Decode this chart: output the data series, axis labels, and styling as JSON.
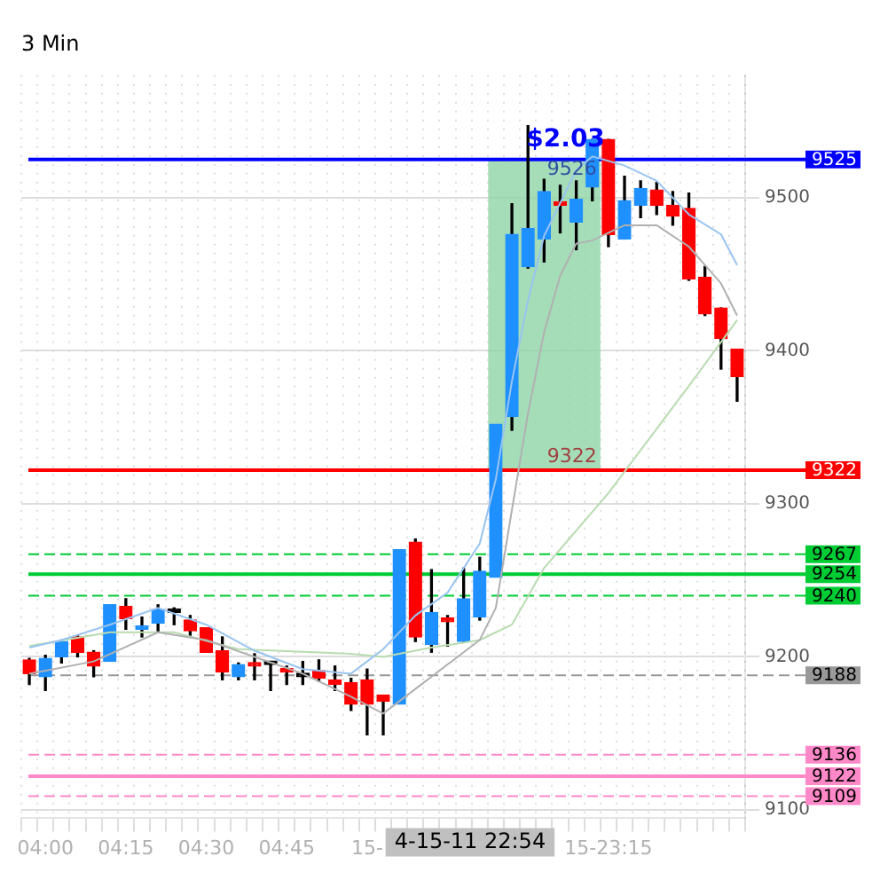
{
  "chart_data": {
    "type": "candlestick",
    "title": "3 Min",
    "categories": [
      null,
      "04:00",
      null,
      null,
      null,
      null,
      "04:15",
      null,
      null,
      null,
      null,
      "04:30",
      null,
      null,
      null,
      null,
      "04:45",
      null,
      null,
      null,
      null,
      "15-",
      null,
      null,
      null,
      null,
      null,
      null,
      null,
      null,
      null,
      null,
      null,
      null,
      null,
      null,
      "15-23:15",
      null,
      null,
      null,
      null,
      null,
      null,
      null,
      null
    ],
    "ohlc": [
      [
        9198,
        9199,
        9182,
        9189
      ],
      [
        9187,
        9201,
        9178,
        9199
      ],
      [
        9200,
        9211,
        9196,
        9210
      ],
      [
        9213,
        9214,
        9200,
        9203
      ],
      [
        9203,
        9204,
        9187,
        9194
      ],
      [
        9197,
        9234,
        9197,
        9234
      ],
      [
        9233,
        9238,
        9218,
        9225
      ],
      [
        9218,
        9226,
        9213,
        9220
      ],
      [
        9222,
        9234,
        9216,
        9231
      ],
      [
        9229,
        9232,
        9221,
        9229
      ],
      [
        9224,
        9227,
        9214,
        9217
      ],
      [
        9219,
        9219,
        9203,
        9203
      ],
      [
        9204,
        9213,
        9185,
        9190
      ],
      [
        9187,
        9196,
        9185,
        9195
      ],
      [
        9196,
        9202,
        9185,
        9194
      ],
      [
        9195,
        9195,
        9178,
        9195
      ],
      [
        9192,
        9194,
        9182,
        9190
      ],
      [
        9187,
        9197,
        9182,
        9187
      ],
      [
        9191,
        9198,
        9184,
        9186
      ],
      [
        9185,
        9194,
        9178,
        9182
      ],
      [
        9183,
        9186,
        9165,
        9169
      ],
      [
        9185,
        9192,
        9149,
        9169
      ],
      [
        9175,
        9175,
        9149,
        9171
      ],
      [
        9169,
        9270,
        9169,
        9270
      ],
      [
        9275,
        9277,
        9210,
        9213
      ],
      [
        9208,
        9257,
        9203,
        9229
      ],
      [
        9225,
        9227,
        9207,
        9223
      ],
      [
        9210,
        9258,
        9210,
        9238
      ],
      [
        9226,
        9265,
        9224,
        9256
      ],
      [
        9252,
        9352,
        9252,
        9352
      ],
      [
        9357,
        9496,
        9348,
        9476
      ],
      [
        9455,
        9547,
        9454,
        9480
      ],
      [
        9473,
        9512,
        9458,
        9504
      ],
      [
        9497,
        9508,
        9477,
        9495
      ],
      [
        9484,
        9511,
        9466,
        9499
      ],
      [
        9507,
        9538,
        9498,
        9538
      ],
      [
        9538,
        9538,
        9468,
        9476
      ],
      [
        9473,
        9514,
        9473,
        9498
      ],
      [
        9495,
        9511,
        9487,
        9506
      ],
      [
        9505,
        9510,
        9489,
        9495
      ],
      [
        9495,
        9504,
        9482,
        9488
      ],
      [
        9493,
        9503,
        9446,
        9447
      ],
      [
        9448,
        9455,
        9423,
        9424
      ],
      [
        9428,
        9428,
        9388,
        9408
      ],
      [
        9401,
        9401,
        9367,
        9383
      ]
    ],
    "colors": [
      "#ff0000",
      "#1e90ff",
      "#1e90ff",
      "#ff0000",
      "#ff0000",
      "#1e90ff",
      "#ff0000",
      "#1e90ff",
      "#1e90ff",
      "#000000",
      "#ff0000",
      "#ff0000",
      "#ff0000",
      "#1e90ff",
      "#ff0000",
      "#000000",
      "#ff0000",
      "#000000",
      "#ff0000",
      "#ff0000",
      "#ff0000",
      "#ff0000",
      "#ff0000",
      "#1e90ff",
      "#ff0000",
      "#1e90ff",
      "#ff0000",
      "#1e90ff",
      "#1e90ff",
      "#1e90ff",
      "#1e90ff",
      "#1e90ff",
      "#1e90ff",
      "#ff0000",
      "#1e90ff",
      "#1e90ff",
      "#ff0000",
      "#1e90ff",
      "#1e90ff",
      "#ff0000",
      "#ff0000",
      "#ff0000",
      "#ff0000",
      "#ff0000",
      "#ff0000"
    ],
    "series": [
      {
        "type": "line",
        "color": "#99c4f0",
        "values": [
          9206,
          null,
          9211,
          null,
          null,
          9221,
          null,
          null,
          9232,
          null,
          null,
          9221,
          null,
          null,
          9204,
          null,
          null,
          9192,
          null,
          null,
          9189,
          null,
          9205,
          null,
          9227,
          null,
          9242,
          null,
          9274,
          9316,
          9380,
          9433,
          9475,
          null,
          9518,
          9527,
          null,
          9521,
          null,
          9511,
          null,
          9489,
          null,
          9476,
          9456
        ]
      },
      {
        "type": "line",
        "color": "#b0b0b0",
        "values": [
          9189,
          null,
          null,
          null,
          9197,
          null,
          null,
          null,
          9216,
          null,
          null,
          9211,
          null,
          null,
          9200,
          null,
          null,
          9189,
          null,
          null,
          9174,
          null,
          9163,
          null,
          9179,
          null,
          9195,
          null,
          9211,
          9232,
          9296,
          9359,
          9412,
          9449,
          9470,
          9472,
          null,
          9482,
          null,
          9482,
          null,
          9468,
          null,
          9444,
          9423
        ]
      },
      {
        "type": "line",
        "color": "#b8dcb0",
        "values": [
          9207,
          null,
          null,
          null,
          null,
          9216,
          null,
          null,
          null,
          9216,
          null,
          null,
          null,
          9205,
          null,
          null,
          null,
          null,
          null,
          null,
          9202,
          null,
          9200,
          null,
          null,
          9206,
          null,
          null,
          9211,
          null,
          9221,
          null,
          9258,
          null,
          null,
          null,
          9307,
          null,
          null,
          null,
          null,
          9377,
          null,
          null,
          9420
        ]
      }
    ],
    "ylim": [
      9095,
      9580
    ],
    "yticks": [
      9100,
      9200,
      9300,
      9400,
      9500
    ],
    "grid": true,
    "legend": false,
    "marker": "none",
    "ref_lines": [
      {
        "axis": "y",
        "value": 9525,
        "label": "9525",
        "color": "#0000ff",
        "line_style": "solid"
      },
      {
        "axis": "y",
        "value": 9322,
        "label": "9322",
        "color": "#ff0000",
        "line_style": "solid"
      },
      {
        "axis": "y",
        "value": 9267,
        "label": "9267",
        "color": "#00cc33",
        "line_style": "dashed"
      },
      {
        "axis": "y",
        "value": 9254,
        "label": "9254",
        "color": "#00cc33",
        "line_style": "solid"
      },
      {
        "axis": "y",
        "value": 9240,
        "label": "9240",
        "color": "#00cc33",
        "line_style": "dashed"
      },
      {
        "axis": "y",
        "value": 9188,
        "label": "9188",
        "color": "#999999",
        "line_style": "dashed"
      },
      {
        "axis": "y",
        "value": 9136,
        "label": "9136",
        "color": "#ff88c8",
        "line_style": "dashed"
      },
      {
        "axis": "y",
        "value": 9122,
        "label": "9122",
        "color": "#ff88c8",
        "line_style": "solid"
      },
      {
        "axis": "y",
        "value": 9109,
        "label": "9109",
        "color": "#ff88c8",
        "line_style": "dashed"
      }
    ],
    "bands": [
      {
        "axis": "y",
        "from": 9322,
        "to": 9525,
        "label": "$2.03",
        "color": "#8fd4a8"
      }
    ],
    "annotations": [
      {
        "text": "9526",
        "y": 9526
      },
      {
        "text": "9322",
        "y": 9322
      },
      "4-15-11 22:54"
    ]
  }
}
